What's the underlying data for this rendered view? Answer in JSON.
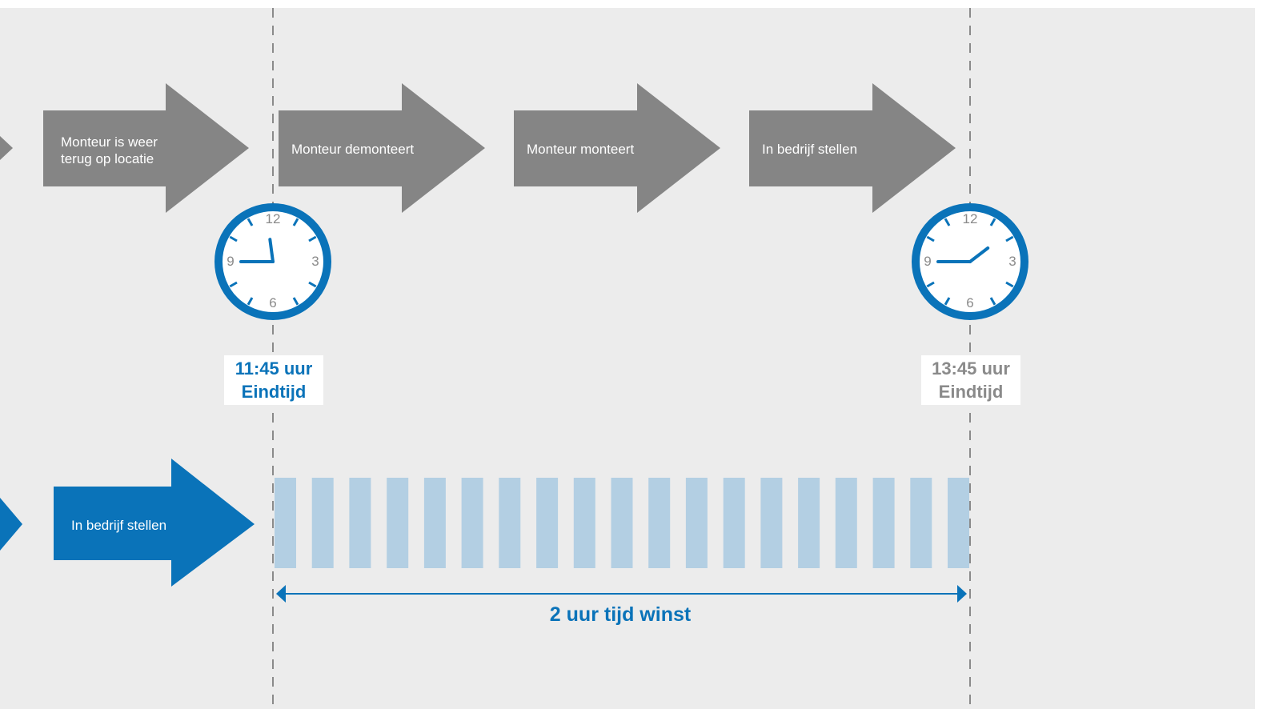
{
  "colors": {
    "background": "#ececec",
    "grey_arrow": "#858585",
    "blue": "#0a73b9",
    "light_blue": "#b3cfe3",
    "dashed_line": "#8a8a8a",
    "clock_face": "#ffffff"
  },
  "top_row": {
    "arrows": [
      {
        "label_line1": "Monteur is weer",
        "label_line2": "terug op locatie"
      },
      {
        "label": "Monteur demonteert"
      },
      {
        "label": "Monteur monteert"
      },
      {
        "label": "In bedrijf stellen"
      }
    ]
  },
  "clocks": [
    {
      "numerals": [
        "12",
        "3",
        "6",
        "9"
      ],
      "time_label": "11:45 uur",
      "caption": "Eindtijd",
      "hour": 11,
      "minute": 45
    },
    {
      "numerals": [
        "12",
        "3",
        "6",
        "9"
      ],
      "time_label": "13:45 uur",
      "caption": "Eindtijd",
      "hour": 13,
      "minute": 45
    }
  ],
  "bottom_row": {
    "arrow_label": "In bedrijf stellen",
    "stripe_count": 19,
    "time_gain_label": "2 uur tijd winst"
  }
}
